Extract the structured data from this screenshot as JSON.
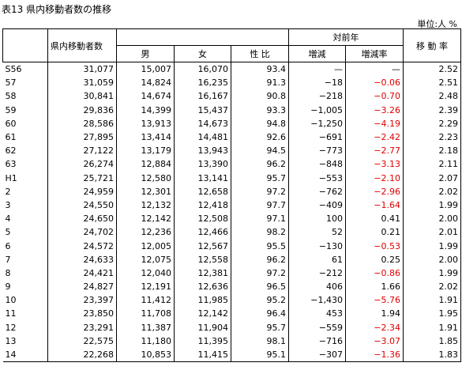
{
  "header": {
    "title": "表13 県内移動者数の推移",
    "unit": "単位:人 %"
  },
  "table": {
    "columns": {
      "total": "県内移動者数",
      "male": "男",
      "female": "女",
      "ratio": "性 比",
      "yoy": "対前年",
      "change": "増減",
      "change_rate": "増減率",
      "move_rate": "移 動 率"
    },
    "rows": [
      [
        "S56",
        "31,077",
        "15,007",
        "16,070",
        "93.4",
        "—",
        "—",
        "2.52"
      ],
      [
        "57",
        "31,059",
        "14,824",
        "16,235",
        "91.3",
        "−18",
        "−0.06",
        "2.51"
      ],
      [
        "58",
        "30,841",
        "14,674",
        "16,167",
        "90.8",
        "−218",
        "−0.70",
        "2.48"
      ],
      [
        "59",
        "29,836",
        "14,399",
        "15,437",
        "93.3",
        "−1,005",
        "−3.26",
        "2.39"
      ],
      [
        "60",
        "28,586",
        "13,913",
        "14,673",
        "94.8",
        "−1,250",
        "−4.19",
        "2.29"
      ],
      [
        "61",
        "27,895",
        "13,414",
        "14,481",
        "92.6",
        "−691",
        "−2.42",
        "2.23"
      ],
      [
        "62",
        "27,122",
        "13,179",
        "13,943",
        "94.5",
        "−773",
        "−2.77",
        "2.18"
      ],
      [
        "63",
        "26,274",
        "12,884",
        "13,390",
        "96.2",
        "−848",
        "−3.13",
        "2.11"
      ],
      [
        "H1",
        "25,721",
        "12,580",
        "13,141",
        "95.7",
        "−553",
        "−2.10",
        "2.07"
      ],
      [
        "2",
        "24,959",
        "12,301",
        "12,658",
        "97.2",
        "−762",
        "−2.96",
        "2.02"
      ],
      [
        "3",
        "24,550",
        "12,132",
        "12,418",
        "97.7",
        "−409",
        "−1.64",
        "1.99"
      ],
      [
        "4",
        "24,650",
        "12,142",
        "12,508",
        "97.1",
        "100",
        "0.41",
        "2.00"
      ],
      [
        "5",
        "24,702",
        "12,236",
        "12,466",
        "98.2",
        "52",
        "0.21",
        "2.01"
      ],
      [
        "6",
        "24,572",
        "12,005",
        "12,567",
        "95.5",
        "−130",
        "−0.53",
        "1.99"
      ],
      [
        "7",
        "24,633",
        "12,075",
        "12,558",
        "96.2",
        "61",
        "0.25",
        "2.00"
      ],
      [
        "8",
        "24,421",
        "12,040",
        "12,381",
        "97.2",
        "−212",
        "−0.86",
        "1.99"
      ],
      [
        "9",
        "24,827",
        "12,191",
        "12,636",
        "96.5",
        "406",
        "1.66",
        "2.02"
      ],
      [
        "10",
        "23,397",
        "11,412",
        "11,985",
        "95.2",
        "−1,430",
        "−5.76",
        "1.91"
      ],
      [
        "11",
        "23,850",
        "11,708",
        "12,142",
        "96.4",
        "453",
        "1.94",
        "1.95"
      ],
      [
        "12",
        "23,291",
        "11,387",
        "11,904",
        "95.7",
        "−559",
        "−2.34",
        "1.91"
      ],
      [
        "13",
        "22,575",
        "11,180",
        "11,395",
        "98.1",
        "−716",
        "−3.07",
        "1.85"
      ],
      [
        "14",
        "22,268",
        "10,853",
        "11,415",
        "95.1",
        "−307",
        "−1.36",
        "1.83"
      ]
    ]
  }
}
